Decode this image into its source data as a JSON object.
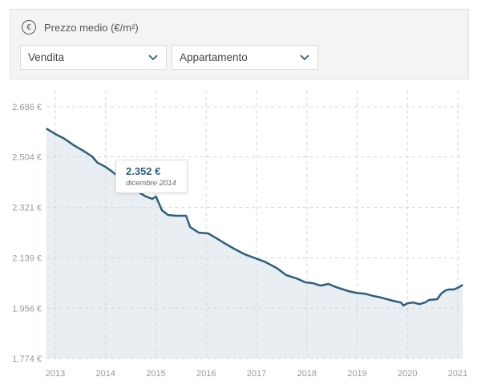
{
  "header": {
    "icon": "euro-icon",
    "title": "Prezzo medio (€/m²)"
  },
  "filters": [
    {
      "value": "Vendita"
    },
    {
      "value": "Appartamento"
    }
  ],
  "tooltip": {
    "value": "2.352 €",
    "date": "dicembre 2014"
  },
  "chart_data": {
    "type": "area",
    "title": "Prezzo medio (€/m²)",
    "xlabel": "",
    "ylabel": "",
    "ylim": [
      1774,
      2686
    ],
    "xlim": [
      2012.82,
      2021.1
    ],
    "grid": true,
    "yticks": [
      2686,
      2504,
      2321,
      2139,
      1956,
      1774
    ],
    "ytick_labels": [
      "2.686 €",
      "2.504 €",
      "2.321 €",
      "2.139 €",
      "1.956 €",
      "1.774 €"
    ],
    "xticks": [
      2013,
      2014,
      2015,
      2016,
      2017,
      2018,
      2019,
      2020,
      2021
    ],
    "xtick_labels": [
      "2013",
      "2014",
      "2015",
      "2016",
      "2017",
      "2018",
      "2019",
      "2020",
      "2021"
    ],
    "colors": {
      "line": "#2e5f7a",
      "fill": "#e8eef1"
    },
    "x": [
      2012.82,
      2013,
      2013.18,
      2013.37,
      2013.56,
      2013.73,
      2013.84,
      2014.0,
      2014.13,
      2014.29,
      2014.45,
      2014.61,
      2014.8,
      2014.93,
      2015.0,
      2015.12,
      2015.24,
      2015.41,
      2015.6,
      2015.68,
      2015.85,
      2016.04,
      2016.2,
      2016.36,
      2016.55,
      2016.76,
      2016.98,
      2017.16,
      2017.4,
      2017.59,
      2017.8,
      2017.97,
      2018.12,
      2018.27,
      2018.43,
      2018.59,
      2018.83,
      2018.98,
      2019.15,
      2019.31,
      2019.47,
      2019.71,
      2019.87,
      2019.92,
      2020.0,
      2020.11,
      2020.24,
      2020.35,
      2020.43,
      2020.59,
      2020.67,
      2020.76,
      2020.82,
      2020.92,
      2021.0,
      2021.1
    ],
    "values": [
      2607,
      2587,
      2570,
      2546,
      2526,
      2506,
      2483,
      2468,
      2451,
      2427,
      2404,
      2381,
      2361,
      2352,
      2361,
      2311,
      2294,
      2291,
      2291,
      2250,
      2230,
      2227,
      2210,
      2192,
      2172,
      2152,
      2137,
      2125,
      2102,
      2076,
      2064,
      2050,
      2047,
      2038,
      2044,
      2032,
      2018,
      2012,
      2009,
      2001,
      1995,
      1983,
      1977,
      1966,
      1974,
      1977,
      1971,
      1977,
      1986,
      1989,
      2009,
      2021,
      2024,
      2024,
      2030,
      2041
    ]
  }
}
